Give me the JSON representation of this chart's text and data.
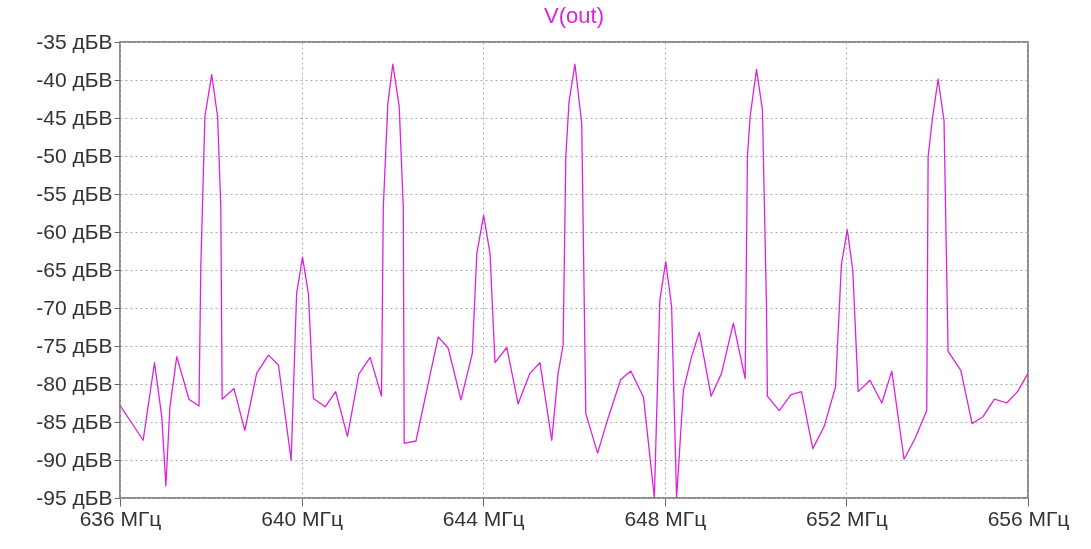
{
  "chart_data": {
    "type": "line",
    "x": [
      636,
      636.51,
      636.76,
      636.92,
      637.01,
      637.1,
      637.25,
      637.52,
      637.74,
      637.78,
      637.87,
      638.02,
      638.15,
      638.22,
      638.25,
      638.51,
      638.75,
      639.01,
      639.27,
      639.49,
      639.77,
      639.89,
      640.02,
      640.15,
      640.26,
      640.52,
      640.75,
      641.01,
      641.26,
      641.51,
      641.76,
      641.8,
      641.9,
      642.01,
      642.15,
      642.24,
      642.26,
      642.52,
      642.75,
      643.01,
      643.23,
      643.51,
      643.76,
      643.86,
      644.01,
      644.15,
      644.26,
      644.52,
      644.77,
      645.03,
      645.25,
      645.51,
      645.65,
      645.76,
      645.82,
      645.89,
      646.02,
      646.17,
      646.26,
      646.52,
      646.76,
      647.03,
      647.25,
      647.53,
      647.77,
      647.89,
      648.02,
      648.15,
      648.26,
      648.41,
      648.59,
      648.76,
      649.02,
      649.25,
      649.51,
      649.77,
      649.82,
      649.88,
      650.02,
      650.15,
      650.24,
      650.26,
      650.52,
      650.78,
      651.01,
      651.26,
      651.51,
      651.76,
      651.89,
      652.02,
      652.14,
      652.26,
      652.52,
      652.78,
      653,
      653.27,
      653.51,
      653.77,
      653.8,
      653.89,
      654.02,
      654.15,
      654.24,
      654.52,
      654.77,
      655.01,
      655.26,
      655.53,
      655.77,
      656
    ],
    "series": [
      {
        "name": "V(out)",
        "color": "#e020e0",
        "values": [
          -82.8,
          -87.4,
          -77.2,
          -84.3,
          -93.4,
          -83,
          -76.4,
          -82,
          -82.9,
          -64.6,
          -44.8,
          -39.3,
          -44.8,
          -56.7,
          -82,
          -80.6,
          -86.1,
          -78.6,
          -76.2,
          -77.5,
          -90,
          -68.1,
          -63.3,
          -68.1,
          -81.9,
          -83,
          -81,
          -86.9,
          -78.7,
          -76.5,
          -81.6,
          -56.7,
          -43.1,
          -37.9,
          -43.5,
          -56.7,
          -87.8,
          -87.5,
          -81,
          -73.8,
          -75.3,
          -82.1,
          -76,
          -62.8,
          -57.8,
          -62.8,
          -77.2,
          -75.2,
          -82.6,
          -78.6,
          -77.2,
          -87.4,
          -78.6,
          -74.9,
          -50.1,
          -42.9,
          -37.9,
          -45.7,
          -83.9,
          -89.1,
          -84.3,
          -79.4,
          -78.3,
          -81.7,
          -95,
          -69,
          -63.9,
          -69.8,
          -95,
          -80.8,
          -76.4,
          -73.2,
          -81.6,
          -78.6,
          -72,
          -79.3,
          -50.1,
          -44.8,
          -38.6,
          -43.9,
          -69.8,
          -81.6,
          -83.5,
          -81.4,
          -81,
          -88.5,
          -85.6,
          -80.4,
          -64.3,
          -59.7,
          -65,
          -81,
          -79.5,
          -82.5,
          -78.3,
          -89.9,
          -87.2,
          -83.5,
          -50.1,
          -45.3,
          -39.9,
          -45.3,
          -75.7,
          -78.2,
          -85.2,
          -84.3,
          -82,
          -82.5,
          -81,
          -78.6
        ]
      }
    ],
    "xlim": [
      636,
      656
    ],
    "xticks": [
      {
        "value": 636,
        "label": "636 МГц"
      },
      {
        "value": 640,
        "label": "640 МГц"
      },
      {
        "value": 644,
        "label": "644 МГц"
      },
      {
        "value": 648,
        "label": "648 МГц"
      },
      {
        "value": 652,
        "label": "652 МГц"
      },
      {
        "value": 656,
        "label": "656 МГц"
      }
    ],
    "ylim": [
      -95,
      -35
    ],
    "yticks": [
      {
        "value": -35,
        "label": "-35 дБВ"
      },
      {
        "value": -40,
        "label": "-40 дБВ"
      },
      {
        "value": -45,
        "label": "-45 дБВ"
      },
      {
        "value": -50,
        "label": "-50 дБВ"
      },
      {
        "value": -55,
        "label": "-55 дБВ"
      },
      {
        "value": -60,
        "label": "-60 дБВ"
      },
      {
        "value": -65,
        "label": "-65 дБВ"
      },
      {
        "value": -70,
        "label": "-70 дБВ"
      },
      {
        "value": -75,
        "label": "-75 дБВ"
      },
      {
        "value": -80,
        "label": "-80 дБВ"
      },
      {
        "value": -85,
        "label": "-85 дБВ"
      },
      {
        "value": -90,
        "label": "-90 дБВ"
      },
      {
        "value": -95,
        "label": "-95 дБВ"
      }
    ],
    "grid": true,
    "legend": "top"
  }
}
